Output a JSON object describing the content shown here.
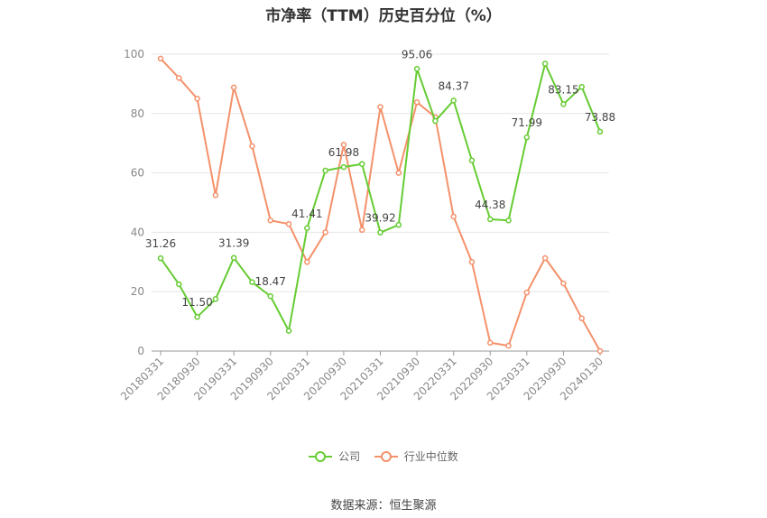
{
  "chart_data": {
    "type": "line",
    "title": "市净率（TTM）历史百分位（%）",
    "x": [
      "20180331",
      "20180630",
      "20180930",
      "20181231",
      "20190331",
      "20190630",
      "20190930",
      "20191231",
      "20200331",
      "20200630",
      "20200930",
      "20201231",
      "20210331",
      "20210630",
      "20210930",
      "20211231",
      "20220331",
      "20220630",
      "20220930",
      "20221231",
      "20230331",
      "20230630",
      "20230930",
      "20231231",
      "20240130"
    ],
    "x_tick_labels": [
      "20180331",
      "20180930",
      "20190331",
      "20190930",
      "20200331",
      "20200930",
      "20210331",
      "20210930",
      "20220331",
      "20220930",
      "20230331",
      "20230930",
      "20240130"
    ],
    "ylim": [
      0,
      100
    ],
    "yticks": [
      0,
      20,
      40,
      60,
      80,
      100
    ],
    "grid": true,
    "legend_position": "bottom",
    "series": [
      {
        "name": "公司",
        "color": "#66cc33",
        "values": [
          31.26,
          22.5,
          11.5,
          17.5,
          31.39,
          23.2,
          18.47,
          6.8,
          41.41,
          60.8,
          61.98,
          63.0,
          39.92,
          42.5,
          95.06,
          77.5,
          84.37,
          64.2,
          44.38,
          44.0,
          71.99,
          96.8,
          83.15,
          89.0,
          73.88
        ],
        "labels": {
          "0": "31.26",
          "2": "11.50",
          "4": "31.39",
          "6": "18.47",
          "8": "41.41",
          "10": "61.98",
          "12": "39.92",
          "14": "95.06",
          "16": "84.37",
          "18": "44.38",
          "20": "71.99",
          "22": "83.15",
          "24": "73.88"
        }
      },
      {
        "name": "行业中位数",
        "color": "#f4916a",
        "values": [
          98.5,
          92.0,
          85.0,
          52.5,
          88.8,
          69.0,
          44.0,
          42.8,
          30.0,
          40.0,
          69.5,
          40.8,
          82.2,
          60.0,
          83.8,
          78.8,
          45.3,
          30.0,
          2.8,
          1.8,
          19.7,
          31.3,
          22.8,
          11.0,
          0.0
        ]
      }
    ]
  },
  "source_text": "数据来源：恒生聚源"
}
